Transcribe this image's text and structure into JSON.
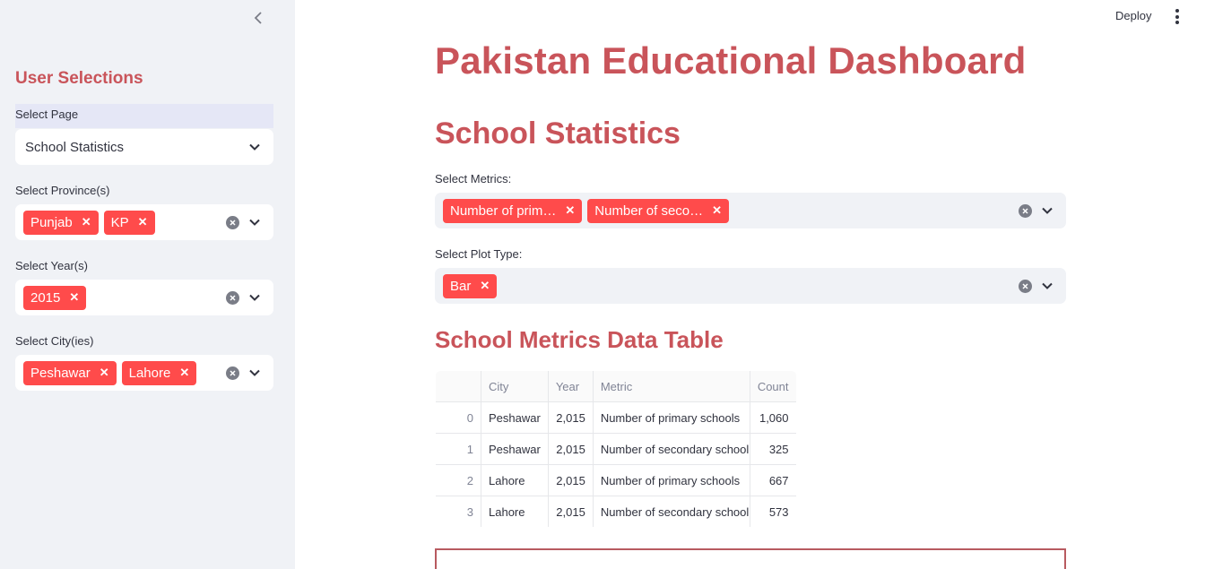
{
  "sidebar": {
    "heading": "User Selections",
    "page_label": "Select Page",
    "page_value": "School Statistics",
    "province_label": "Select Province(s)",
    "provinces": [
      "Punjab",
      "KP"
    ],
    "year_label": "Select Year(s)",
    "years": [
      "2015"
    ],
    "city_label": "Select City(ies)",
    "cities": [
      "Peshawar",
      "Lahore"
    ]
  },
  "header": {
    "deploy_label": "Deploy"
  },
  "main": {
    "title": "Pakistan Educational Dashboard",
    "section_title": "School Statistics",
    "metrics_label": "Select Metrics:",
    "metrics": [
      "Number of prim…",
      "Number of seco…"
    ],
    "plot_label": "Select Plot Type:",
    "plot_types": [
      "Bar"
    ],
    "table_title": "School Metrics Data Table",
    "table": {
      "columns": [
        "",
        "City",
        "Year",
        "Metric",
        "Count"
      ],
      "rows": [
        [
          "0",
          "Peshawar",
          "2,015",
          "Number of primary schools",
          "1,060"
        ],
        [
          "1",
          "Peshawar",
          "2,015",
          "Number of secondary school",
          "325"
        ],
        [
          "2",
          "Lahore",
          "2,015",
          "Number of primary schools",
          "667"
        ],
        [
          "3",
          "Lahore",
          "2,015",
          "Number of secondary school",
          "573"
        ]
      ]
    }
  },
  "colors": {
    "accent": "#c9545a",
    "tag": "#ff4b4b",
    "sidebar_bg": "#f0f2f6"
  }
}
